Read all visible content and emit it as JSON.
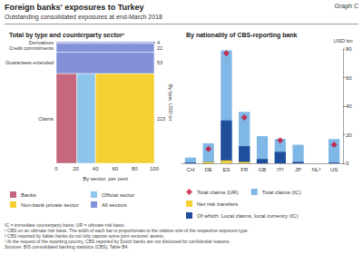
{
  "title": "Foreign banks' exposures to Turkey",
  "subtitle": "Outstanding consolidated exposures at end-March 2018",
  "graph_label": "Graph C",
  "notes": [
    "IC = immediate counterparty basis; UR = ultimate risk basis.",
    "¹ CBS on an ultimate risk basis. The width of each bar is proportionate to the relative size of the respective exposure type.",
    "² CBS reported by Italian banks do not fully capture some joint ventures' assets.",
    "³ At the request of the reporting country, CBS reported by Dutch banks are not disclosed for confidential reasons."
  ],
  "sources": "Sources: BIS consolidated banking statistics (CBS), Table B4.",
  "chart_data": [
    {
      "type": "marimekko",
      "title": "Total by type and counterparty sector¹",
      "xlabel": "By sector, per cent",
      "ylabel": "By type, USD bn",
      "categories": [
        "Derivatives",
        "Credit commitments",
        "Guarantees extended",
        "Claims"
      ],
      "totals": [
        4,
        22,
        53,
        223
      ],
      "xlim": [
        0,
        100
      ],
      "xticks": [
        0,
        20,
        40,
        60,
        80,
        100
      ],
      "stacked": true,
      "series": [
        {
          "name": "Banks",
          "color": "#c4677f",
          "values": [
            0,
            0,
            0,
            21
          ]
        },
        {
          "name": "Official sector",
          "color": "#8ec5ea",
          "values": [
            0,
            0,
            0,
            19
          ]
        },
        {
          "name": "Non-bank private sector",
          "color": "#f5d033",
          "values": [
            0,
            0,
            0,
            60
          ]
        },
        {
          "name": "All sectors",
          "color": "#8392d8",
          "values": [
            100,
            100,
            100,
            0
          ]
        }
      ]
    },
    {
      "type": "bar",
      "title": "By nationality of CBS-reporting bank",
      "ylabel": "USD bn",
      "categories": [
        "CH",
        "DE",
        "ES",
        "FR",
        "GB",
        "IT²",
        "JP",
        "NL³",
        "US"
      ],
      "ylim": [
        0,
        80
      ],
      "yticks": [
        0,
        20,
        40,
        60,
        80
      ],
      "series": [
        {
          "name": "Total claims (IC)",
          "type": "bar",
          "color": "#7fb8e6",
          "values": [
            4,
            14,
            79,
            36,
            19,
            17,
            13,
            null,
            17
          ]
        },
        {
          "name": "Of which: Local claims, local currency (IC)",
          "type": "bar",
          "color": "#1f4e9c",
          "values": [
            0.5,
            1,
            30,
            12,
            3,
            8,
            1,
            null,
            0.5
          ]
        },
        {
          "name": "Net risk transfers",
          "type": "bar",
          "color": "#f5d033",
          "values": [
            null,
            1,
            2,
            1,
            null,
            null,
            null,
            null,
            null
          ]
        },
        {
          "name": "Total claims (UR)",
          "type": "scatter",
          "marker": "diamond",
          "color": "#c8102e",
          "values": [
            null,
            10,
            77,
            32,
            null,
            16,
            null,
            null,
            13
          ]
        }
      ]
    }
  ]
}
